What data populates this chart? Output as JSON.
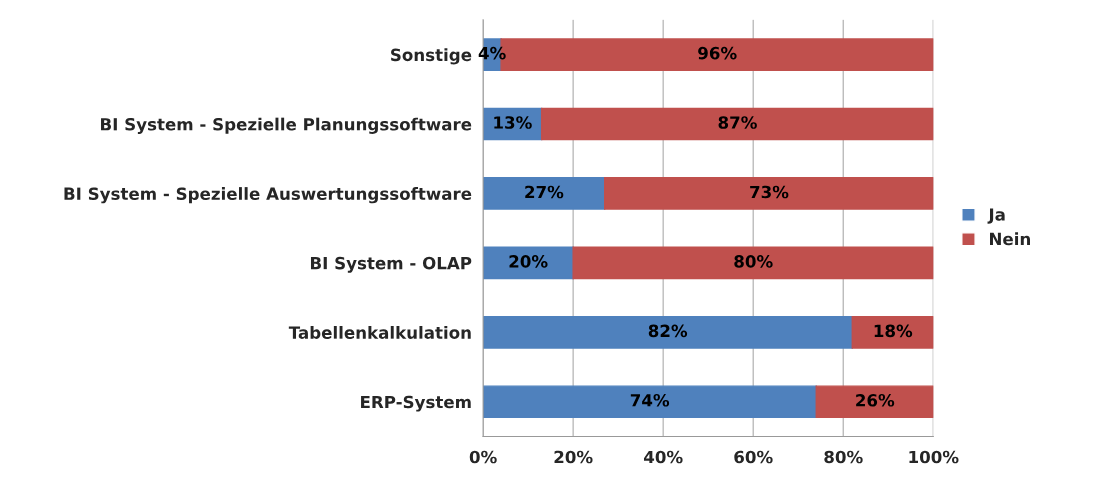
{
  "chart_data": {
    "type": "bar",
    "orientation": "horizontal",
    "stacked": true,
    "categories": [
      "Sonstige",
      "BI System - Spezielle Planungssoftware",
      "BI System - Spezielle Auswertungssoftware",
      "BI System - OLAP",
      "Tabellenkalkulation",
      "ERP-System"
    ],
    "series": [
      {
        "name": "Ja",
        "color": "#4f81bd",
        "values": [
          4,
          13,
          27,
          20,
          82,
          74
        ],
        "value_labels": [
          "4%",
          "13%",
          "27%",
          "20%",
          "82%",
          "74%"
        ]
      },
      {
        "name": "Nein",
        "color": "#c0504d",
        "values": [
          96,
          87,
          73,
          80,
          18,
          26
        ],
        "value_labels": [
          "96%",
          "87%",
          "73%",
          "80%",
          "18%",
          "26%"
        ]
      }
    ],
    "xlim": [
      0,
      100
    ],
    "xticks": [
      {
        "value": 0,
        "label": "0%"
      },
      {
        "value": 20,
        "label": "20%"
      },
      {
        "value": 40,
        "label": "40%"
      },
      {
        "value": 60,
        "label": "60%"
      },
      {
        "value": 80,
        "label": "80%"
      },
      {
        "value": 100,
        "label": "100%"
      }
    ],
    "grid": "x",
    "legend": "right"
  }
}
